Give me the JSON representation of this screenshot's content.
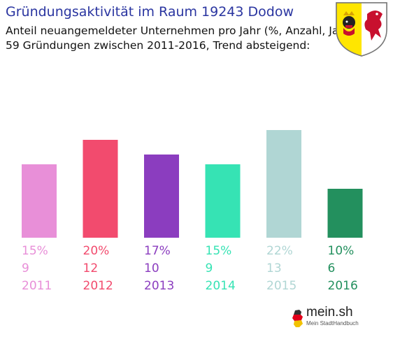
{
  "header": {
    "title": "Gründungsaktivität im Raum 19243 Dodow",
    "subtitle1": "Anteil neuangemeldeter Unternehmen pro Jahr (%, Anzahl, Jahr)",
    "subtitle2": "59 Gründungen zwischen 2011-2016, Trend absteigend:"
  },
  "logo": {
    "main": "mein.sh",
    "sub": "Mein StadtHandbuch"
  },
  "crest_icon": "mecklenburg-vorpommern-coat-of-arms",
  "chart_data": {
    "type": "bar",
    "title": "Gründungsaktivität im Raum 19243 Dodow",
    "categories": [
      "2011",
      "2012",
      "2013",
      "2014",
      "2015",
      "2016"
    ],
    "values": [
      15,
      20,
      17,
      15,
      22,
      10
    ],
    "percent_labels": [
      "15%",
      "20%",
      "17%",
      "15%",
      "22%",
      "10%"
    ],
    "counts": [
      "9",
      "12",
      "10",
      "9",
      "13",
      "6"
    ],
    "colors": [
      "#e88fd8",
      "#f24b6e",
      "#8b3dbf",
      "#36e3b4",
      "#b0d6d4",
      "#23905e"
    ],
    "ylim": [
      0,
      22
    ],
    "grid": false,
    "xlabel": "",
    "ylabel": ""
  }
}
